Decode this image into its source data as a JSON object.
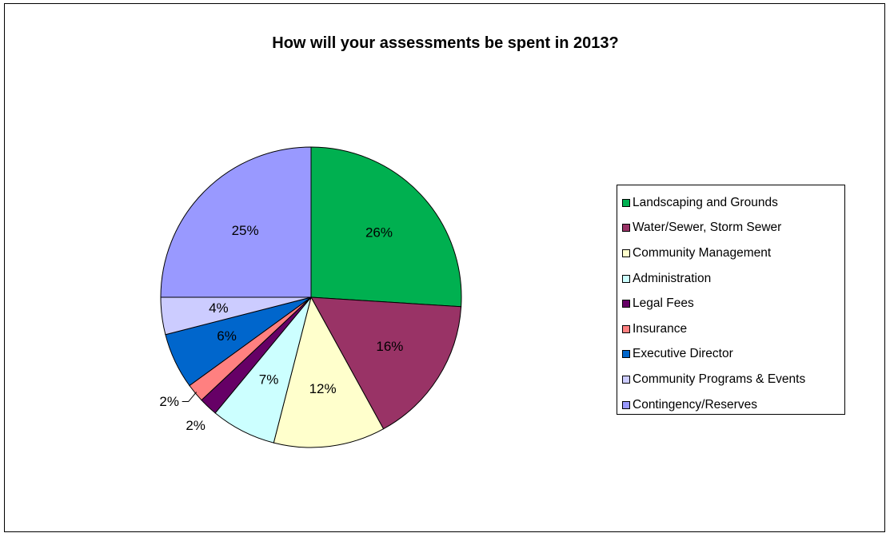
{
  "chart_data": {
    "type": "pie",
    "title": "How will your assessments be spent in 2013?",
    "legend_position": "right",
    "series": [
      {
        "name": "Landscaping and Grounds",
        "value": 26,
        "label": "26%",
        "color": "#00B050"
      },
      {
        "name": "Water/Sewer, Storm Sewer",
        "value": 16,
        "label": "16%",
        "color": "#993366"
      },
      {
        "name": "Community Management",
        "value": 12,
        "label": "12%",
        "color": "#FFFFCC"
      },
      {
        "name": "Administration",
        "value": 7,
        "label": "7%",
        "color": "#CCFFFF"
      },
      {
        "name": "Legal Fees",
        "value": 2,
        "label": "2%",
        "color": "#660066"
      },
      {
        "name": "Insurance",
        "value": 2,
        "label": "2%",
        "color": "#FF8080"
      },
      {
        "name": "Executive Director",
        "value": 6,
        "label": "6%",
        "color": "#0066CC"
      },
      {
        "name": "Community Programs & Events",
        "value": 4,
        "label": "4%",
        "color": "#CCCCFF"
      },
      {
        "name": "Contingency/Reserves",
        "value": 25,
        "label": "25%",
        "color": "#9999FF"
      }
    ]
  }
}
